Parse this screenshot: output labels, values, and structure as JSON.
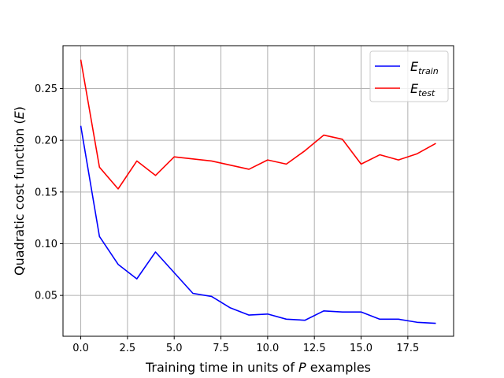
{
  "chart_data": {
    "type": "line",
    "xlabel_prefix": "Training time in units of ",
    "xlabel_var": "P",
    "xlabel_suffix": " examples",
    "ylabel_prefix": "Quadratic cost function (",
    "ylabel_var": "E",
    "ylabel_suffix": ")",
    "xlim": [
      -0.95,
      19.95
    ],
    "ylim": [
      0.0105,
      0.2915
    ],
    "xticks": [
      0,
      2.5,
      5,
      7.5,
      10,
      12.5,
      15,
      17.5
    ],
    "xtick_labels": [
      "0.0",
      "2.5",
      "5.0",
      "7.5",
      "10.0",
      "12.5",
      "15.0",
      "17.5"
    ],
    "yticks": [
      0.05,
      0.1,
      0.15,
      0.2,
      0.25
    ],
    "ytick_labels": [
      "0.05",
      "0.10",
      "0.15",
      "0.20",
      "0.25"
    ],
    "grid": true,
    "legend_position": "top-right",
    "x": [
      0,
      1,
      2,
      3,
      4,
      5,
      6,
      7,
      8,
      9,
      10,
      11,
      12,
      13,
      14,
      15,
      16,
      17,
      18,
      19
    ],
    "series": [
      {
        "base": "E",
        "subscript": "train",
        "color": "#0000ff",
        "values": [
          0.214,
          0.107,
          0.08,
          0.066,
          0.092,
          0.072,
          0.052,
          0.049,
          0.038,
          0.031,
          0.032,
          0.027,
          0.026,
          0.035,
          0.034,
          0.034,
          0.027,
          0.027,
          0.024,
          0.023
        ]
      },
      {
        "base": "E",
        "subscript": "test",
        "color": "#ff0000",
        "values": [
          0.278,
          0.174,
          0.153,
          0.18,
          0.166,
          0.184,
          0.182,
          0.18,
          0.176,
          0.172,
          0.181,
          0.177,
          0.19,
          0.205,
          0.201,
          0.177,
          0.186,
          0.181,
          0.187,
          0.197
        ]
      }
    ]
  }
}
